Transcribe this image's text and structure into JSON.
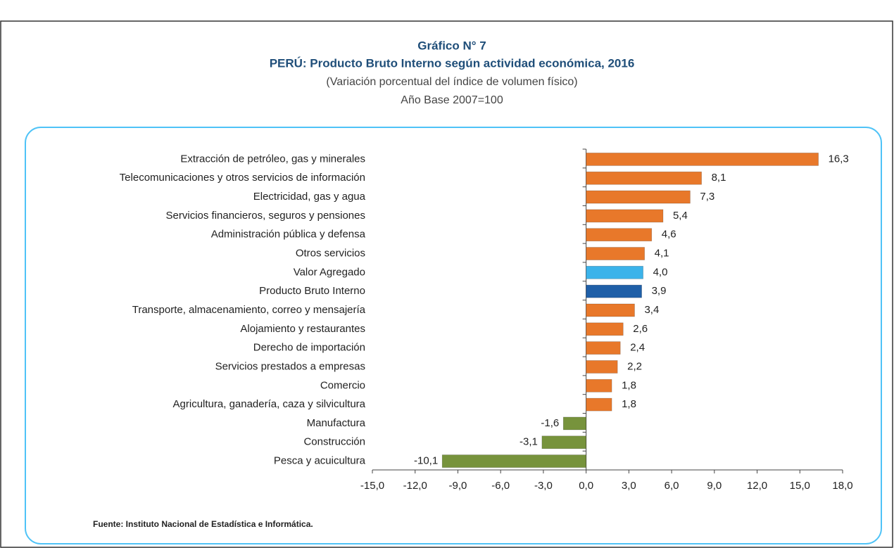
{
  "chart_data": {
    "type": "bar",
    "orientation": "horizontal",
    "title": "Gráfico N° 7",
    "subtitle": "PERÚ: Producto Bruto Interno según actividad económica, 2016",
    "subtitle2": "(Variación porcentual del índice de volumen físico)",
    "subtitle3": "Año Base 2007=100",
    "source": "Fuente: Instituto Nacional de Estadística e Informática.",
    "categories": [
      "Extracción de petróleo, gas y minerales",
      "Telecomunicaciones y otros servicios de información",
      "Electricidad, gas y agua",
      "Servicios financieros, seguros y pensiones",
      "Administración pública y defensa",
      "Otros servicios",
      "Valor Agregado",
      "Producto Bruto Interno",
      "Transporte, almacenamiento, correo y mensajería",
      "Alojamiento y restaurantes",
      "Derecho de importación",
      "Servicios prestados a empresas",
      "Comercio",
      "Agricultura, ganadería, caza y silvicultura",
      "Manufactura",
      "Construcción",
      "Pesca y acuicultura"
    ],
    "values": [
      16.3,
      8.1,
      7.3,
      5.4,
      4.6,
      4.1,
      4.0,
      3.9,
      3.4,
      2.6,
      2.4,
      2.2,
      1.8,
      1.8,
      -1.6,
      -3.1,
      -10.1
    ],
    "value_labels": [
      "16,3",
      "8,1",
      "7,3",
      "5,4",
      "4,6",
      "4,1",
      "4,0",
      "3,9",
      "3,4",
      "2,6",
      "2,4",
      "2,2",
      "1,8",
      "1,8",
      "-1,6",
      "-3,1",
      "-10,1"
    ],
    "colors": [
      "#e8782a",
      "#e8782a",
      "#e8782a",
      "#e8782a",
      "#e8782a",
      "#e8782a",
      "#3bb3ea",
      "#1f5fa8",
      "#e8782a",
      "#e8782a",
      "#e8782a",
      "#e8782a",
      "#e8782a",
      "#e8782a",
      "#77933c",
      "#77933c",
      "#77933c"
    ],
    "xlim": [
      -15,
      18
    ],
    "xticks": [
      {
        "value": -15,
        "label": "-15,0"
      },
      {
        "value": -12,
        "label": "-12,0"
      },
      {
        "value": -9,
        "label": "-9,0"
      },
      {
        "value": -6,
        "label": "-6,0"
      },
      {
        "value": -3,
        "label": "-3,0"
      },
      {
        "value": 0,
        "label": "0,0"
      },
      {
        "value": 3,
        "label": "3,0"
      },
      {
        "value": 6,
        "label": "6,0"
      },
      {
        "value": 9,
        "label": "9,0"
      },
      {
        "value": 12,
        "label": "12,0"
      },
      {
        "value": 15,
        "label": "15,0"
      },
      {
        "value": 18,
        "label": "18,0"
      }
    ]
  }
}
